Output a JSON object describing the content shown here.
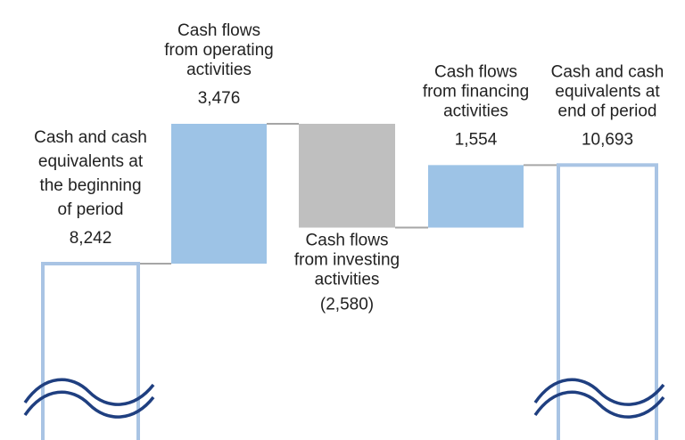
{
  "chart_data": {
    "type": "waterfall",
    "categories": [
      [
        "Cash and cash",
        "equivalents at",
        "the beginning",
        "of period"
      ],
      [
        "Cash flows",
        "from operating",
        "activities"
      ],
      [
        "Cash flows",
        "from investing",
        "activities"
      ],
      [
        "Cash flows",
        "from financing",
        "activities"
      ],
      [
        "Cash and cash",
        "equivalents at",
        "end of period"
      ]
    ],
    "measure": [
      "absolute",
      "relative",
      "relative",
      "relative",
      "total"
    ],
    "values": [
      8242,
      3476,
      -2580,
      1554,
      10693
    ],
    "value_labels": [
      "8,242",
      "3,476",
      "(2,580)",
      "1,554",
      "10,693"
    ],
    "colors": [
      "#a9c4e4",
      "#9dc3e6",
      "#bfbfbf",
      "#9dc3e6",
      "#a9c4e4"
    ],
    "connector_color": "#a6a6a6"
  }
}
